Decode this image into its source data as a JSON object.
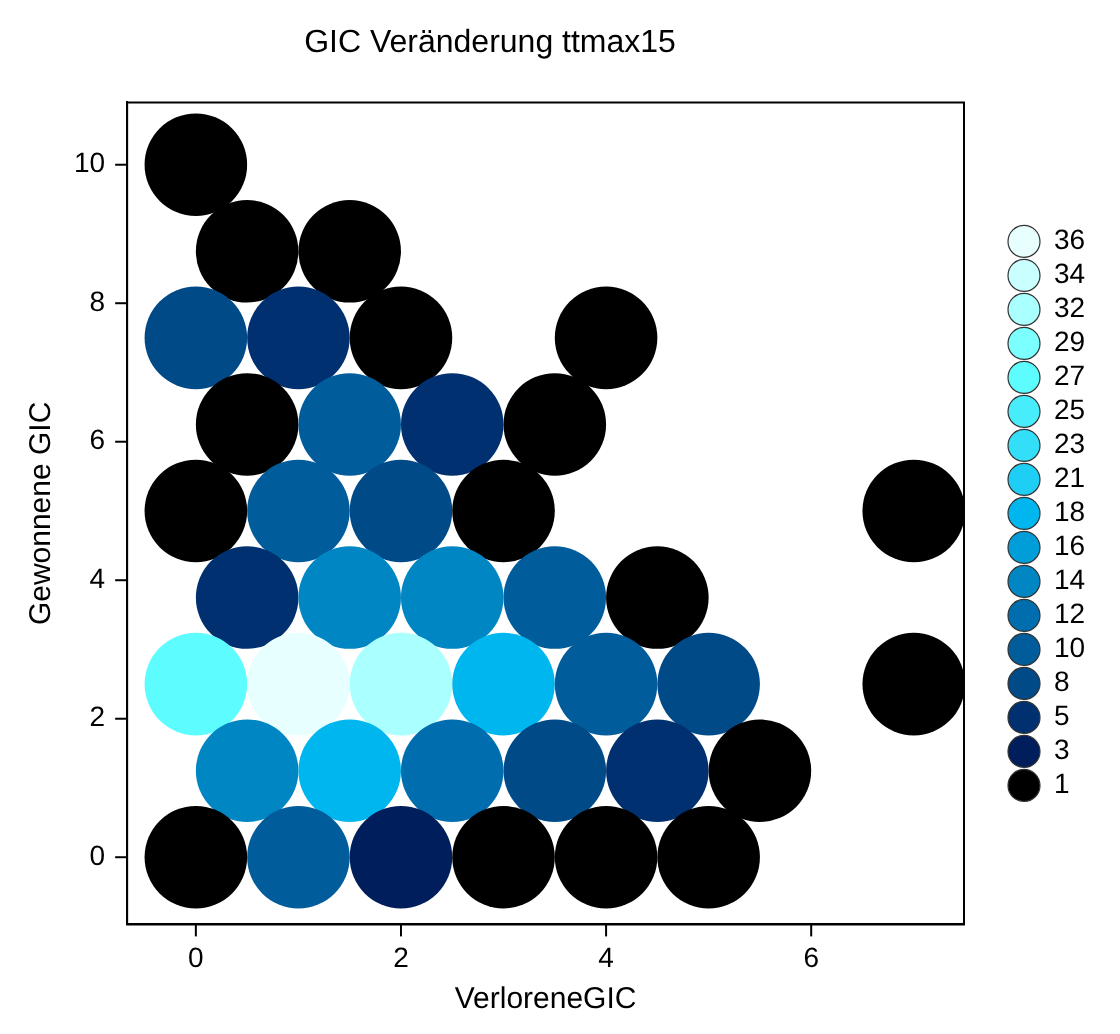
{
  "chart_data": {
    "type": "scatter",
    "title": "GIC Veränderung ttmax15",
    "xlabel": "VerloreneGIC",
    "ylabel": "Gewonnene GIC",
    "x": [
      0,
      0.5,
      1.5,
      0,
      1,
      2,
      4,
      0.5,
      1.5,
      2.5,
      3.5,
      0,
      1,
      2,
      3,
      7,
      0.5,
      1.5,
      2.5,
      3.5,
      4.5,
      0,
      1,
      2,
      3,
      4,
      5,
      7,
      0.5,
      1.5,
      2.5,
      3.5,
      4.5,
      5.5,
      0,
      1,
      2,
      3,
      4,
      5
    ],
    "values": [
      10,
      8.75,
      8.75,
      7.5,
      7.5,
      7.5,
      7.5,
      6.25,
      6.25,
      6.25,
      6.25,
      5,
      5,
      5,
      5,
      5,
      3.75,
      3.75,
      3.75,
      3.75,
      3.75,
      2.5,
      2.5,
      2.5,
      2.5,
      2.5,
      2.5,
      2.5,
      1.25,
      1.25,
      1.25,
      1.25,
      1.25,
      1.25,
      0,
      0,
      0,
      0,
      0,
      0
    ],
    "cvalues": [
      1,
      1,
      1,
      8,
      5,
      1,
      1,
      1,
      10,
      5,
      1,
      1,
      10,
      8,
      1,
      1,
      5,
      14,
      14,
      10,
      1,
      27,
      36,
      32,
      18,
      10,
      8,
      1,
      14,
      18,
      12,
      8,
      5,
      1,
      1,
      10,
      3,
      1,
      1,
      1
    ],
    "xlim": [
      -0.67,
      7.49
    ],
    "ylim": [
      -0.97,
      10.9
    ],
    "xticks": [
      0,
      2,
      4,
      6
    ],
    "yticks": [
      0,
      2,
      4,
      6,
      8,
      10
    ],
    "cticks": [
      1,
      3,
      5,
      8,
      10,
      12,
      14,
      16,
      18,
      21,
      23,
      25,
      27,
      29,
      32,
      34,
      36
    ],
    "grid": false
  }
}
